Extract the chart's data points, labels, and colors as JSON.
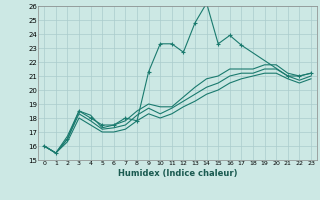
{
  "title": "",
  "xlabel": "Humidex (Indice chaleur)",
  "xlim": [
    -0.5,
    23.5
  ],
  "ylim": [
    15,
    26
  ],
  "xticks": [
    0,
    1,
    2,
    3,
    4,
    5,
    6,
    7,
    8,
    9,
    10,
    11,
    12,
    13,
    14,
    15,
    16,
    17,
    18,
    19,
    20,
    21,
    22,
    23
  ],
  "yticks": [
    15,
    16,
    17,
    18,
    19,
    20,
    21,
    22,
    23,
    24,
    25,
    26
  ],
  "bg_color": "#cce8e4",
  "grid_color": "#aacccc",
  "line_color": "#1a7a6e",
  "series1_x": [
    0,
    1,
    2,
    3,
    4,
    5,
    6,
    7,
    8,
    9,
    10,
    11,
    12,
    13,
    14,
    15,
    16,
    17,
    21,
    22,
    23
  ],
  "series1_y": [
    16.0,
    15.5,
    16.5,
    18.5,
    18.0,
    17.5,
    17.5,
    18.0,
    17.8,
    21.3,
    23.3,
    23.3,
    22.7,
    24.8,
    26.2,
    23.3,
    23.9,
    23.2,
    21.0,
    21.0,
    21.2
  ],
  "series2_x": [
    0,
    1,
    2,
    3,
    4,
    5,
    6,
    7,
    8,
    9,
    10,
    11,
    12,
    13,
    14,
    15,
    16,
    17,
    18,
    19,
    20,
    21,
    22,
    23
  ],
  "series2_y": [
    16.0,
    15.5,
    16.7,
    18.5,
    18.2,
    17.3,
    17.5,
    17.8,
    18.5,
    19.0,
    18.8,
    18.8,
    19.5,
    20.2,
    20.8,
    21.0,
    21.5,
    21.5,
    21.5,
    21.8,
    21.8,
    21.2,
    21.0,
    21.2
  ],
  "series3_x": [
    0,
    1,
    2,
    3,
    4,
    5,
    6,
    7,
    8,
    9,
    10,
    11,
    12,
    13,
    14,
    15,
    16,
    17,
    18,
    19,
    20,
    21,
    22,
    23
  ],
  "series3_y": [
    16.0,
    15.5,
    16.5,
    18.3,
    17.8,
    17.2,
    17.3,
    17.5,
    18.2,
    18.7,
    18.3,
    18.7,
    19.2,
    19.7,
    20.2,
    20.5,
    21.0,
    21.2,
    21.2,
    21.5,
    21.5,
    21.0,
    20.7,
    21.0
  ],
  "series4_x": [
    0,
    1,
    2,
    3,
    4,
    5,
    6,
    7,
    8,
    9,
    10,
    11,
    12,
    13,
    14,
    15,
    16,
    17,
    18,
    19,
    20,
    21,
    22,
    23
  ],
  "series4_y": [
    16.0,
    15.5,
    16.3,
    18.0,
    17.5,
    17.0,
    17.0,
    17.2,
    17.8,
    18.3,
    18.0,
    18.3,
    18.8,
    19.2,
    19.7,
    20.0,
    20.5,
    20.8,
    21.0,
    21.2,
    21.2,
    20.8,
    20.5,
    20.8
  ]
}
